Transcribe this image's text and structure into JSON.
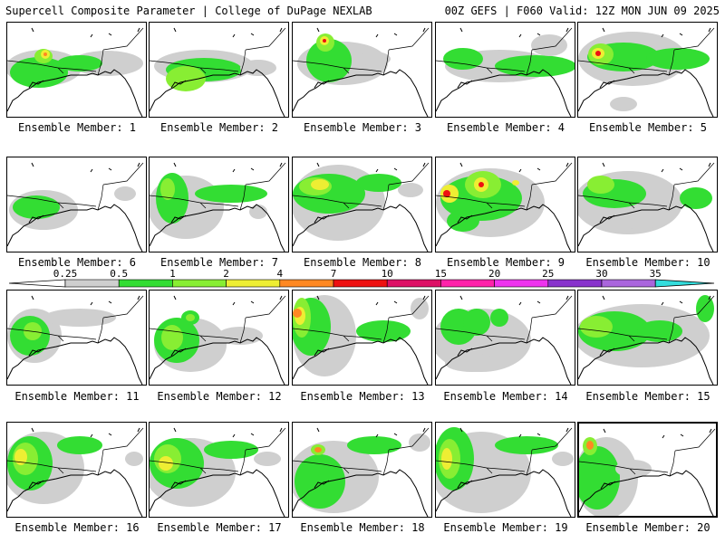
{
  "header": {
    "title": "Supercell Composite Parameter | College of DuPage NEXLAB",
    "run_info": "00Z GEFS | F060 Valid: 12Z MON JUN 09 2025"
  },
  "legend": {
    "ticks": [
      "0.25",
      "0.5",
      "1",
      "2",
      "4",
      "7",
      "10",
      "15",
      "20",
      "25",
      "30",
      "35"
    ],
    "colors": [
      "#cfcfcf",
      "#33dd33",
      "#88ee33",
      "#eeee33",
      "#ff8822",
      "#ee1111",
      "#dd1166",
      "#ff22aa",
      "#ee33ee",
      "#8833cc",
      "#aa66dd",
      "#33dddd"
    ]
  },
  "members_label_prefix": "Ensemble Member: ",
  "members": [
    {
      "id": "1"
    },
    {
      "id": "2"
    },
    {
      "id": "3"
    },
    {
      "id": "4"
    },
    {
      "id": "5"
    },
    {
      "id": "6"
    },
    {
      "id": "7"
    },
    {
      "id": "8"
    },
    {
      "id": "9"
    },
    {
      "id": "10"
    },
    {
      "id": "11"
    },
    {
      "id": "12"
    },
    {
      "id": "13"
    },
    {
      "id": "14"
    },
    {
      "id": "15"
    },
    {
      "id": "16"
    },
    {
      "id": "17"
    },
    {
      "id": "18"
    },
    {
      "id": "19"
    },
    {
      "id": "20"
    }
  ],
  "selected_member": "20"
}
